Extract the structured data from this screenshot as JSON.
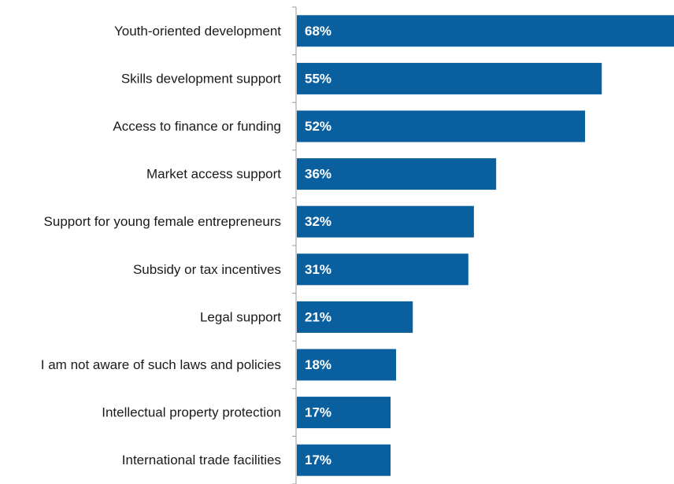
{
  "chart_data": {
    "type": "bar",
    "orientation": "horizontal",
    "categories": [
      "Youth-oriented development",
      "Skills development support",
      "Access to finance or funding",
      "Market access support",
      "Support for young female entrepreneurs",
      "Subsidy or tax incentives",
      "Legal support",
      "I am not aware of such laws and policies",
      "Intellectual property protection",
      "International trade facilities"
    ],
    "values": [
      68,
      55,
      52,
      36,
      32,
      31,
      21,
      18,
      17,
      17
    ],
    "value_labels": [
      "68%",
      "55%",
      "52%",
      "36%",
      "32%",
      "31%",
      "21%",
      "18%",
      "17%",
      "17%"
    ],
    "unit": "%",
    "title": "",
    "xlabel": "",
    "ylabel": "",
    "xlim": [
      0,
      68
    ],
    "grid": false,
    "legend": "none",
    "colors": {
      "bar": "#0a5f9e",
      "value_label": "#ffffff",
      "category_label": "#1a1a1a",
      "axis": "#9a9a9a"
    }
  }
}
